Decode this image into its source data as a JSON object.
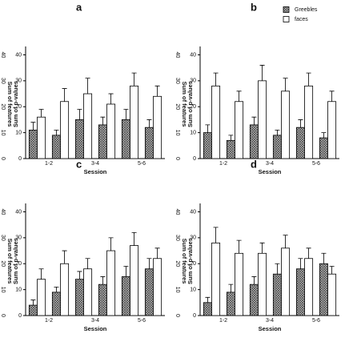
{
  "chart_data": [
    {
      "type": "bar",
      "panel_label": "a",
      "ylabel": "Sum of p-values",
      "xlabel": "Session",
      "y2label": "Sum of features",
      "categories": [
        "1-2",
        null,
        "3-4",
        null,
        "5-6",
        null
      ],
      "ylim": [
        0,
        42
      ],
      "yticks": [
        0,
        10,
        20,
        30,
        40
      ],
      "y2lim": [
        0,
        42
      ],
      "y2ticks": [
        0,
        10,
        20,
        30,
        40
      ],
      "series": [
        {
          "name": "Greebles",
          "color": "#000000",
          "fill": "hatch",
          "values": [
            11,
            9,
            15,
            13,
            15,
            12
          ],
          "errors": [
            3,
            2,
            4,
            3,
            4,
            3
          ]
        },
        {
          "name": "faces",
          "color": "#000000",
          "fill": "none",
          "values": [
            16,
            22,
            25,
            21,
            28,
            24
          ],
          "errors": [
            3,
            5,
            6,
            4,
            5,
            4
          ]
        }
      ]
    },
    {
      "type": "bar",
      "panel_label": "b",
      "ylabel": "Sum of p-values",
      "xlabel": "Session",
      "y2label": "Sum of features",
      "legend": "upper right",
      "categories": [
        "1-2",
        null,
        "3-4",
        null,
        "5-6",
        null
      ],
      "ylim": [
        0,
        42
      ],
      "yticks": [
        0,
        10,
        20,
        30,
        40
      ],
      "y2lim": [
        0,
        42
      ],
      "y2ticks": [
        0,
        10,
        20,
        30,
        40
      ],
      "series": [
        {
          "name": "Greebles",
          "color": "#000000",
          "fill": "hatch",
          "values": [
            10,
            7,
            13,
            9,
            12,
            8
          ],
          "errors": [
            3,
            2,
            3,
            2,
            3,
            2
          ]
        },
        {
          "name": "faces",
          "color": "#000000",
          "fill": "none",
          "values": [
            28,
            22,
            30,
            26,
            28,
            22
          ],
          "errors": [
            5,
            4,
            6,
            5,
            5,
            4
          ]
        }
      ]
    },
    {
      "type": "bar",
      "panel_label": "c",
      "ylabel": "Sum of p-values",
      "xlabel": "Session",
      "y2label": "Sum of features",
      "categories": [
        "1-2",
        null,
        "3-4",
        null,
        "5-6",
        null
      ],
      "ylim": [
        0,
        42
      ],
      "yticks": [
        0,
        10,
        20,
        30,
        40
      ],
      "y2lim": [
        0,
        42
      ],
      "y2ticks": [
        0,
        10,
        20,
        30,
        40
      ],
      "series": [
        {
          "name": "Greebles",
          "color": "#000000",
          "fill": "hatch",
          "values": [
            4,
            9,
            14,
            12,
            15,
            18
          ],
          "errors": [
            2,
            2,
            3,
            3,
            4,
            4
          ]
        },
        {
          "name": "faces",
          "color": "#000000",
          "fill": "none",
          "values": [
            14,
            20,
            18,
            25,
            27,
            22
          ],
          "errors": [
            4,
            5,
            4,
            5,
            5,
            4
          ]
        }
      ]
    },
    {
      "type": "bar",
      "panel_label": "d",
      "ylabel": "Sum of p-values",
      "xlabel": "Session",
      "y2label": "Sum of features",
      "categories": [
        "1-2",
        null,
        "3-4",
        null,
        "5-6",
        null
      ],
      "ylim": [
        0,
        42
      ],
      "yticks": [
        0,
        10,
        20,
        30,
        40
      ],
      "y2lim": [
        0,
        42
      ],
      "y2ticks": [
        0,
        10,
        20,
        30,
        40
      ],
      "series": [
        {
          "name": "Greebles",
          "color": "#000000",
          "fill": "hatch",
          "values": [
            5,
            9,
            12,
            16,
            18,
            20
          ],
          "errors": [
            2,
            3,
            3,
            4,
            4,
            4
          ]
        },
        {
          "name": "faces",
          "color": "#000000",
          "fill": "none",
          "values": [
            28,
            24,
            24,
            26,
            22,
            16
          ],
          "errors": [
            6,
            5,
            4,
            5,
            4,
            3
          ]
        }
      ]
    }
  ]
}
